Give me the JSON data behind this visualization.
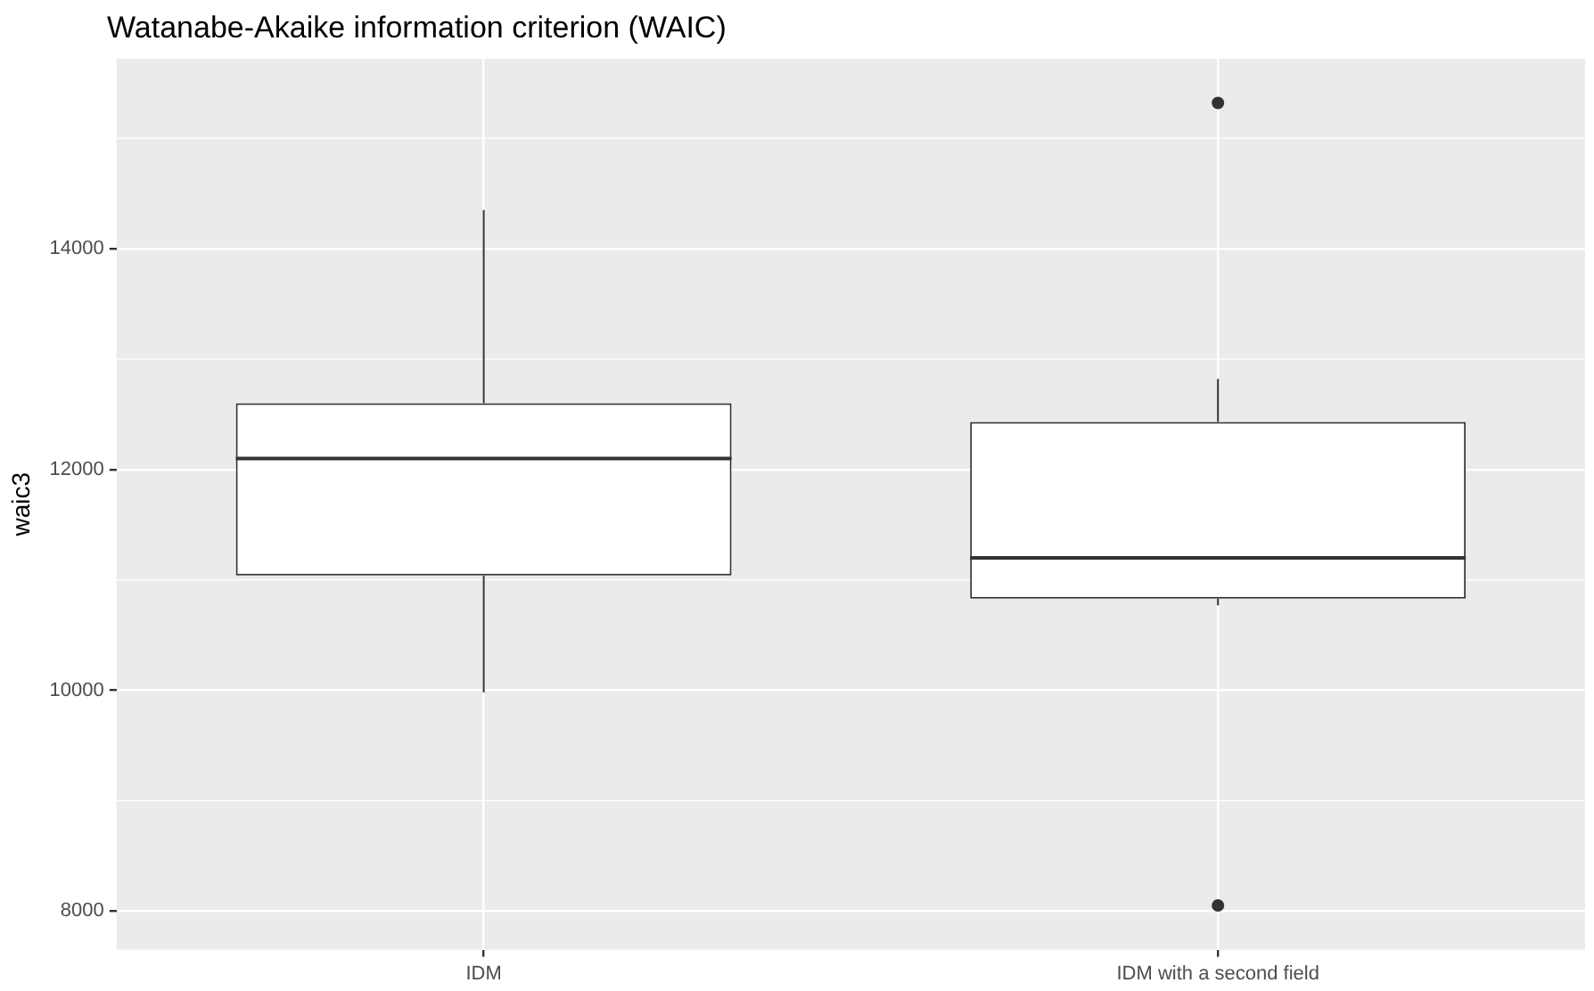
{
  "chart_data": {
    "type": "box",
    "title": "Watanabe-Akaike information criterion (WAIC)",
    "ylabel": "waic3",
    "categories": [
      "IDM",
      "IDM with a second field"
    ],
    "boxes": [
      {
        "low": 9980,
        "q1": 11040,
        "median": 12100,
        "q3": 12600,
        "high": 14350
      },
      {
        "low": 10770,
        "q1": 10830,
        "median": 11200,
        "q3": 12430,
        "high": 12820,
        "outliers": [
          15320,
          8050
        ]
      }
    ],
    "ylim": [
      7650,
      15720
    ],
    "yticks": [
      8000,
      10000,
      12000,
      14000
    ],
    "grid": true,
    "legend": false
  }
}
